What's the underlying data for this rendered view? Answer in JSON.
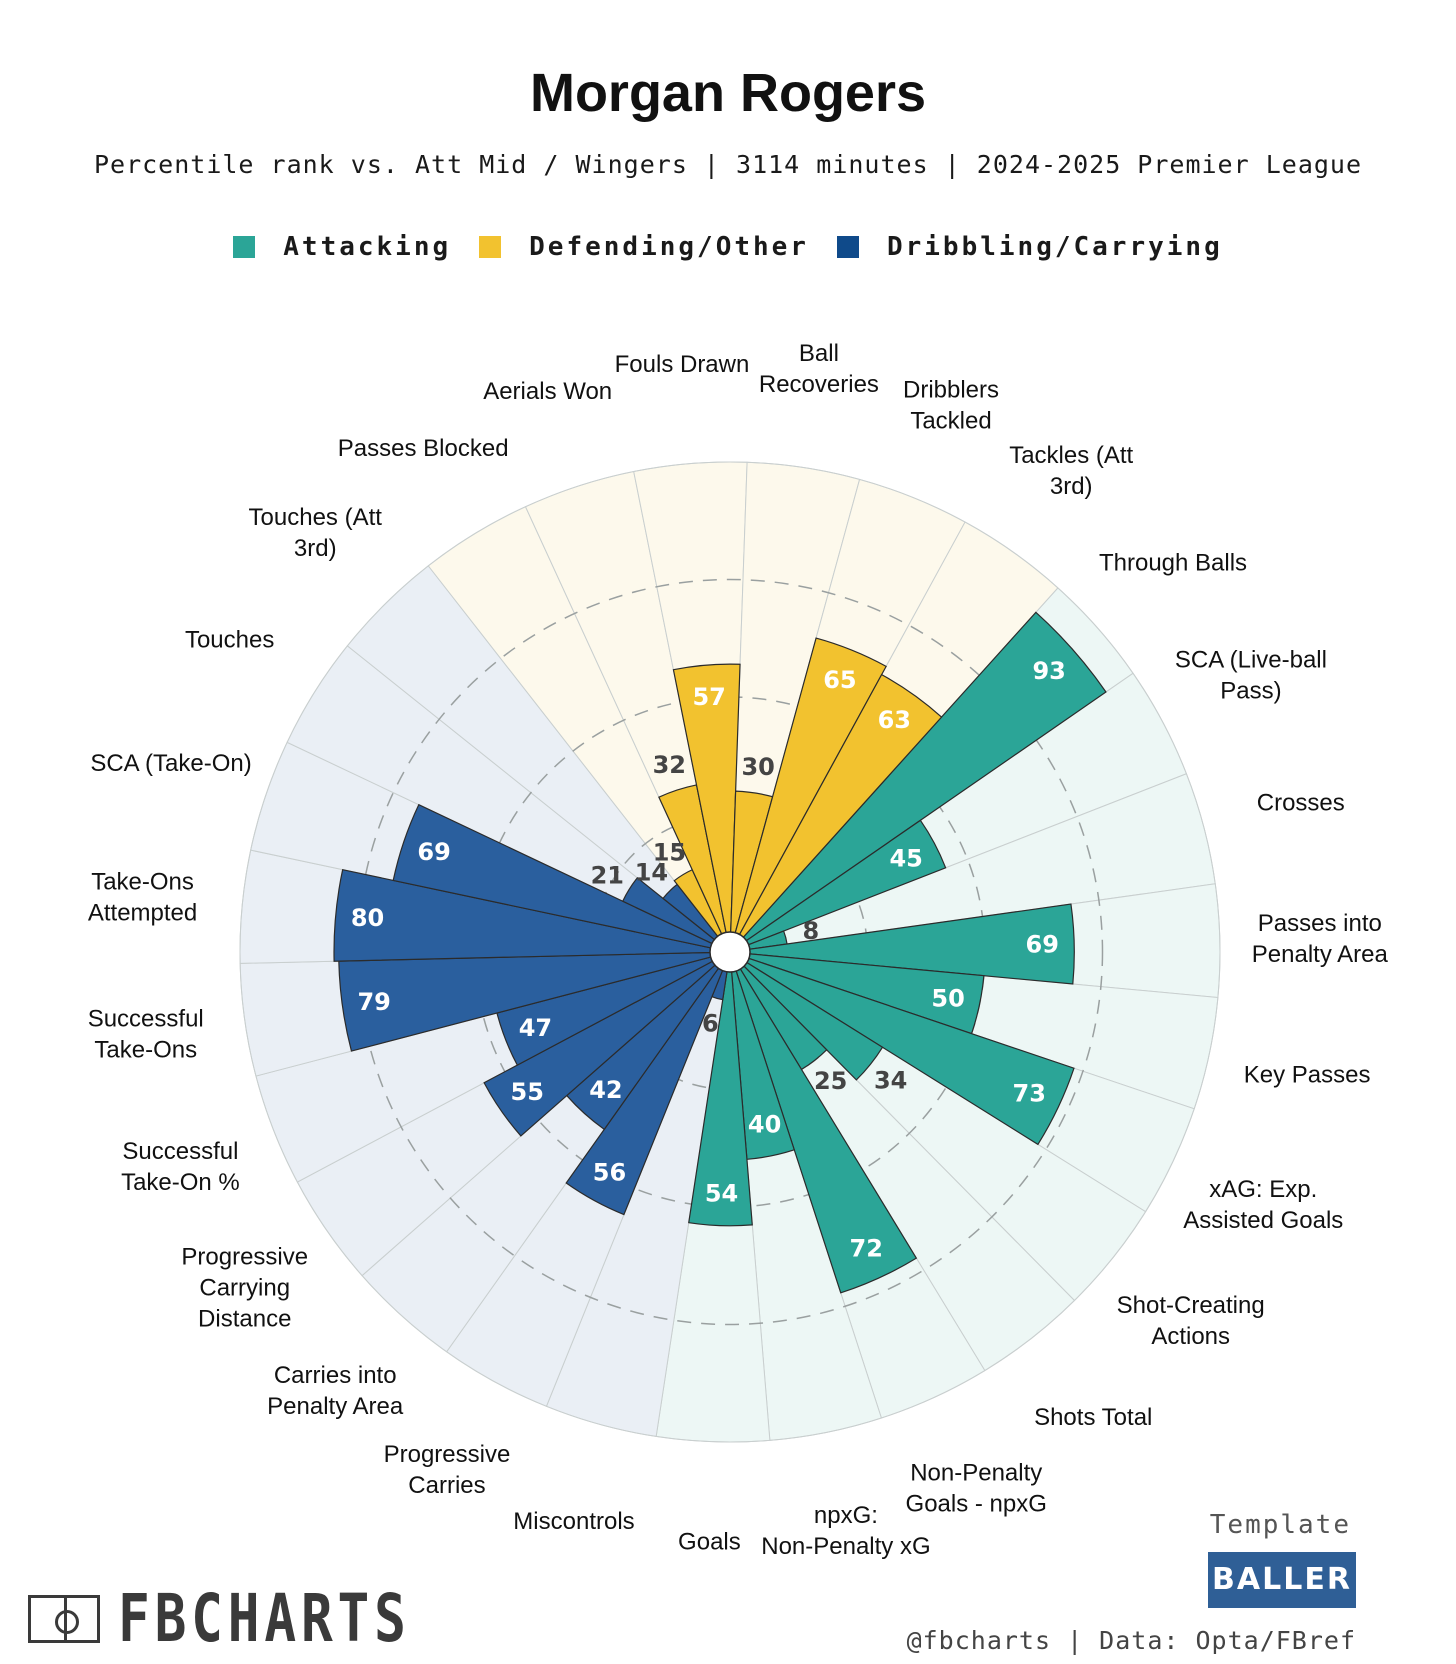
{
  "title": "Morgan Rogers",
  "subtitle": "Percentile rank vs. Att Mid / Wingers | 3114 minutes | 2024-2025 Premier League",
  "legend": [
    {
      "label": "Attacking",
      "color": "#2ba597"
    },
    {
      "label": "Defending/Other",
      "color": "#f2c22f"
    },
    {
      "label": "Dribbling/Carrying",
      "color": "#0f4a8a"
    }
  ],
  "chart_data": {
    "type": "polar-bar",
    "rlim": [
      0,
      100
    ],
    "gridlines": [
      25,
      50,
      75
    ],
    "series": [
      {
        "name": "Attacking",
        "color": "#2ba597",
        "background": "#edf7f5"
      },
      {
        "name": "Defending/Other",
        "color": "#f2c22f",
        "background": "#fdf9ec"
      },
      {
        "name": "Dribbling/Carrying",
        "color": "#2a5f9e",
        "background": "#eaeff5"
      }
    ],
    "categories": [
      {
        "label": "Through Balls",
        "value": 93,
        "group": "Attacking"
      },
      {
        "label": "SCA (Live-ball Pass)",
        "value": 45,
        "group": "Attacking"
      },
      {
        "label": "Crosses",
        "value": 8,
        "group": "Attacking"
      },
      {
        "label": "Passes into Penalty Area",
        "value": 69,
        "group": "Attacking"
      },
      {
        "label": "Key Passes",
        "value": 50,
        "group": "Attacking"
      },
      {
        "label": "xAG: Exp. Assisted Goals",
        "value": 73,
        "group": "Attacking"
      },
      {
        "label": "Shot-Creating Actions",
        "value": 34,
        "group": "Attacking"
      },
      {
        "label": "Shots Total",
        "value": 25,
        "group": "Attacking"
      },
      {
        "label": "Non-Penalty Goals - npxG",
        "value": 72,
        "group": "Attacking"
      },
      {
        "label": "npxG: Non-Penalty xG",
        "value": 40,
        "group": "Attacking"
      },
      {
        "label": "Goals",
        "value": 54,
        "group": "Attacking"
      },
      {
        "label": "Miscontrols",
        "value": 6,
        "group": "Dribbling/Carrying"
      },
      {
        "label": "Progressive Carries",
        "value": 56,
        "group": "Dribbling/Carrying"
      },
      {
        "label": "Carries into Penalty Area",
        "value": 42,
        "group": "Dribbling/Carrying"
      },
      {
        "label": "Progressive Carrying Distance",
        "value": 55,
        "group": "Dribbling/Carrying"
      },
      {
        "label": "Successful Take-On %",
        "value": 47,
        "group": "Dribbling/Carrying"
      },
      {
        "label": "Successful Take-Ons",
        "value": 79,
        "group": "Dribbling/Carrying"
      },
      {
        "label": "Take-Ons Attempted",
        "value": 80,
        "group": "Dribbling/Carrying"
      },
      {
        "label": "SCA (Take-On)",
        "value": 69,
        "group": "Dribbling/Carrying"
      },
      {
        "label": "Touches",
        "value": 21,
        "group": "Dribbling/Carrying"
      },
      {
        "label": "Touches (Att 3rd)",
        "value": 14,
        "group": "Dribbling/Carrying"
      },
      {
        "label": "Passes Blocked",
        "value": 15,
        "group": "Defending/Other"
      },
      {
        "label": "Aerials Won",
        "value": 32,
        "group": "Defending/Other"
      },
      {
        "label": "Fouls Drawn",
        "value": 57,
        "group": "Defending/Other"
      },
      {
        "label": "Ball Recoveries",
        "value": 30,
        "group": "Defending/Other"
      },
      {
        "label": "Dribblers Tackled",
        "value": 65,
        "group": "Defending/Other"
      },
      {
        "label": "Tackles (Att 3rd)",
        "value": 63,
        "group": "Defending/Other"
      }
    ]
  },
  "branding": {
    "name": "FBCHARTS",
    "template_label": "Template",
    "template_name": "BALLER",
    "credit": "@fbcharts | Data: Opta/FBref"
  }
}
